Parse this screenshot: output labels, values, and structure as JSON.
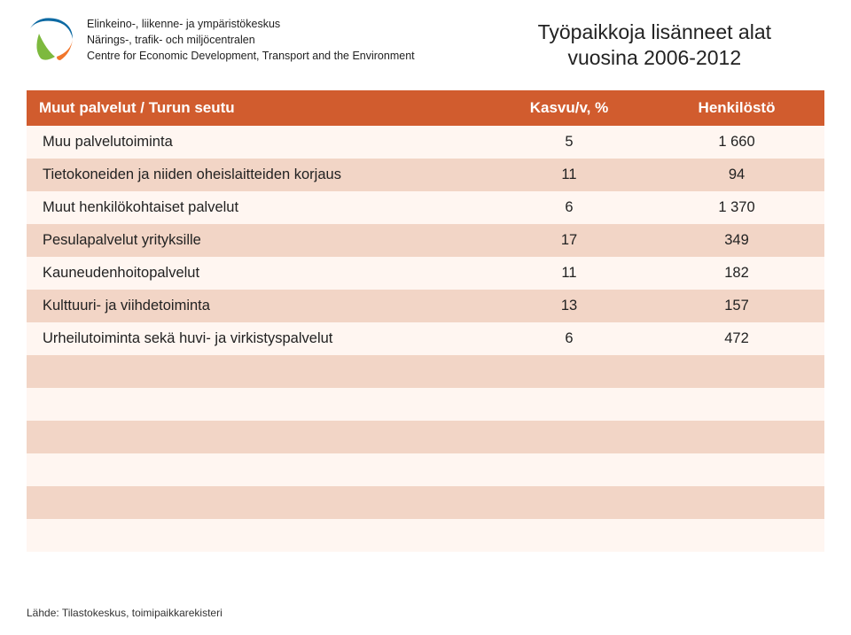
{
  "header": {
    "org_fi": "Elinkeino-, liikenne- ja ympäristökeskus",
    "org_sv": "Närings-, trafik- och miljöcentralen",
    "org_en": "Centre for Economic Development, Transport and the Environment",
    "title_line1": "Työpaikkoja lisänneet alat",
    "title_line2": "vuosina 2006-2012",
    "logo_colors": {
      "blue": "#0d6aa3",
      "green": "#7db93e",
      "orange": "#f1762c"
    }
  },
  "table": {
    "type": "table",
    "header_bg": "#d15c2e",
    "header_text_color": "#ffffff",
    "row_odd_bg": "#fff6f1",
    "row_even_bg": "#f2d5c6",
    "font_size_header": 17,
    "font_size_body": 16.5,
    "columns": [
      {
        "label": "Muut palvelut / Turun seutu",
        "align": "left",
        "width_pct": 58
      },
      {
        "label": "Kasvu/v, %",
        "align": "center",
        "width_pct": 20
      },
      {
        "label": "Henkilöstö",
        "align": "center",
        "width_pct": 22
      }
    ],
    "rows": [
      {
        "label": "Muu palvelutoiminta",
        "growth": "5",
        "staff": "1 660"
      },
      {
        "label": "Tietokoneiden ja niiden oheislaitteiden korjaus",
        "growth": "11",
        "staff": "94"
      },
      {
        "label": "Muut henkilökohtaiset palvelut",
        "growth": "6",
        "staff": "1 370"
      },
      {
        "label": "Pesulapalvelut yrityksille",
        "growth": "17",
        "staff": "349"
      },
      {
        "label": "Kauneudenhoitopalvelut",
        "growth": "11",
        "staff": "182"
      },
      {
        "label": "Kulttuuri- ja viihdetoiminta",
        "growth": "13",
        "staff": "157"
      },
      {
        "label": "Urheilutoiminta sekä huvi- ja virkistyspalvelut",
        "growth": "6",
        "staff": "472"
      }
    ],
    "empty_rows_after": 6
  },
  "source": "Lähde: Tilastokeskus, toimipaikkarekisteri"
}
